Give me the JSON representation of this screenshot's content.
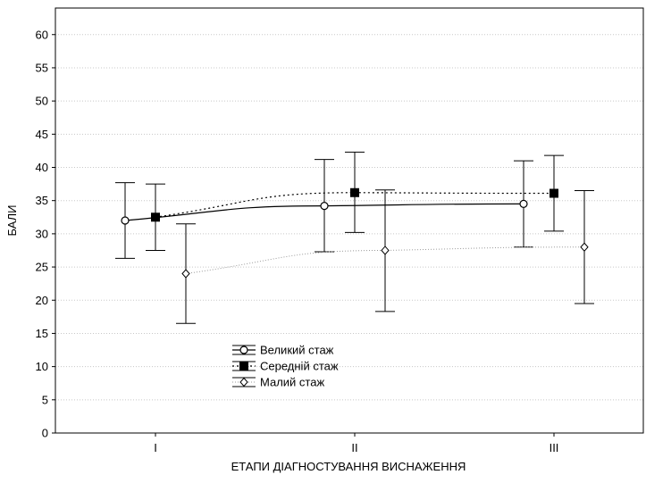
{
  "chart_data": {
    "type": "line",
    "title": "",
    "xlabel": "ЕТАПИ ДІАГНОСТУВАННЯ ВИСНАЖЕННЯ",
    "ylabel": "БАЛИ",
    "ylim": [
      0,
      64
    ],
    "yticks": [
      0,
      5,
      10,
      15,
      20,
      25,
      30,
      35,
      40,
      45,
      50,
      55,
      60
    ],
    "categories": [
      "I",
      "II",
      "III"
    ],
    "grid": "horizontal dotted",
    "legend_position": "lower-left",
    "series": [
      {
        "name": "Великий стаж",
        "marker": "open-circle",
        "line": "solid",
        "color": "#000000",
        "values": [
          32.0,
          34.2,
          34.5
        ],
        "lower": [
          26.3,
          27.3,
          28.0
        ],
        "upper": [
          37.7,
          41.2,
          41.0
        ]
      },
      {
        "name": "Середній стаж",
        "marker": "filled-square",
        "line": "dotted",
        "color": "#000000",
        "values": [
          32.5,
          36.2,
          36.1
        ],
        "lower": [
          27.5,
          30.2,
          30.4
        ],
        "upper": [
          37.5,
          42.3,
          41.8
        ]
      },
      {
        "name": "Малий стаж",
        "marker": "open-diamond",
        "line": "light-dotted",
        "color": "#888888",
        "values": [
          24.0,
          27.5,
          28.0
        ],
        "lower": [
          16.5,
          18.3,
          19.5
        ],
        "upper": [
          31.5,
          36.6,
          36.5
        ]
      }
    ]
  }
}
